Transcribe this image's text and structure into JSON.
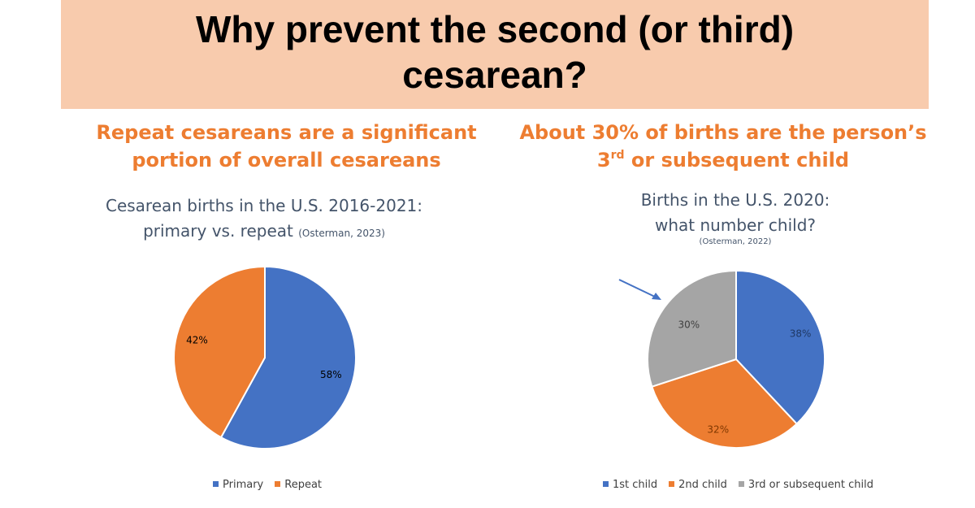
{
  "slide": {
    "title_line1": "Why prevent the second (or third)",
    "title_line2": "cesarean?"
  },
  "left": {
    "subhead_line1": "Repeat cesareans are a significant",
    "subhead_line2": "portion of overall cesareans"
  },
  "right": {
    "subhead_line1": "About 30% of births are the person’s",
    "subhead_line2_num": "3",
    "subhead_line2_sup": "rd",
    "subhead_line2_rest": " or subsequent child"
  },
  "chart_data": [
    {
      "type": "pie",
      "title_line1": "Cesarean births in the U.S. 2016-2021:",
      "title_line2": "primary vs. repeat",
      "citation": "(Osterman, 2023)",
      "categories": [
        "Primary",
        "Repeat"
      ],
      "values": [
        58,
        42
      ],
      "labels": [
        "58%",
        "42%"
      ],
      "colors": [
        "#4472c4",
        "#ed7d31"
      ],
      "legend_position": "bottom"
    },
    {
      "type": "pie",
      "title_line1": "Births in the U.S. 2020:",
      "title_line2": "what number child?",
      "citation": "(Osterman, 2022)",
      "categories": [
        "1st child",
        "2nd child",
        "3rd or subsequent child"
      ],
      "values": [
        38,
        32,
        30
      ],
      "labels": [
        "38%",
        "32%",
        "30%"
      ],
      "colors": [
        "#4472c4",
        "#ed7d31",
        "#a5a5a5"
      ],
      "legend_position": "bottom",
      "annotation": "arrow pointing to 3rd or subsequent child slice"
    }
  ]
}
